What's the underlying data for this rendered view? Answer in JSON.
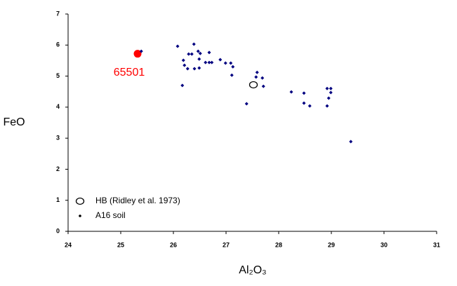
{
  "chart_data": {
    "type": "scatter",
    "xlabel": "Al₂O₃",
    "ylabel": "FeO",
    "xlim": [
      24,
      31
    ],
    "ylim": [
      0,
      7
    ],
    "xticks": [
      24,
      25,
      26,
      27,
      28,
      29,
      30,
      31
    ],
    "yticks": [
      0,
      1,
      2,
      3,
      4,
      5,
      6,
      7
    ],
    "legend": "lower left",
    "series": [
      {
        "name": "HB (Ridley et al. 1973)",
        "color": "#000000",
        "marker": "open-circle",
        "x": [
          27.52
        ],
        "y": [
          4.72
        ]
      },
      {
        "name": "A16 soil",
        "color": "#000080",
        "marker": "diamond",
        "x": [
          26.08,
          25.39,
          26.19,
          26.21,
          26.17,
          26.27,
          26.29,
          26.35,
          26.39,
          26.4,
          26.47,
          26.51,
          26.49,
          26.49,
          26.61,
          26.68,
          26.68,
          26.73,
          26.89,
          26.99,
          27.09,
          27.13,
          27.11,
          27.39,
          27.59,
          27.57,
          27.69,
          27.71,
          28.24,
          28.48,
          28.48,
          28.59,
          28.92,
          28.99,
          28.99,
          28.95,
          28.92,
          29.37
        ],
        "y": [
          5.96,
          5.8,
          5.51,
          5.35,
          4.7,
          5.24,
          5.71,
          5.71,
          6.03,
          5.24,
          5.8,
          5.73,
          5.55,
          5.26,
          5.44,
          5.76,
          5.44,
          5.44,
          5.53,
          5.42,
          5.42,
          5.3,
          5.03,
          4.11,
          5.12,
          4.97,
          4.94,
          4.67,
          4.49,
          4.45,
          4.13,
          4.04,
          4.6,
          4.6,
          4.47,
          4.29,
          4.04,
          2.89
        ]
      }
    ],
    "annotations": [
      {
        "text": "65501",
        "x": 25.32,
        "y": 5.72,
        "color": "#ff0000"
      }
    ]
  }
}
